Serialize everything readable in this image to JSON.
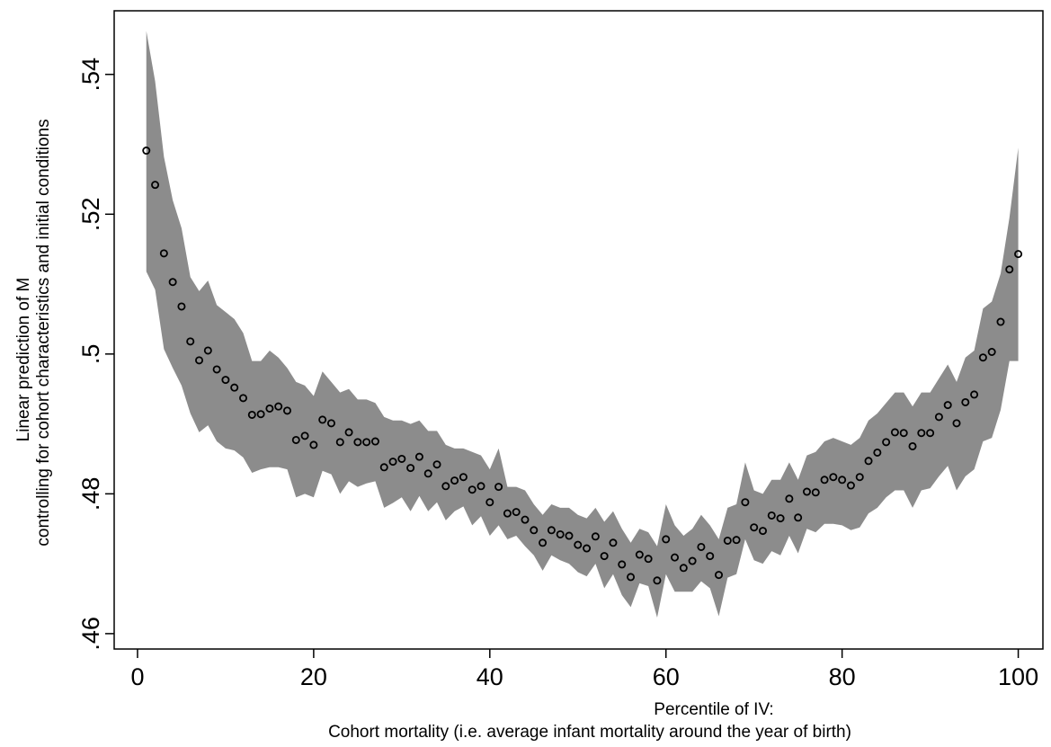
{
  "chart_data": {
    "type": "scatter",
    "ylabel": [
      "Linear prediction of M",
      "controlling for cohort characteristics and initial conditions"
    ],
    "xlabel": [
      "Percentile of IV:",
      "Cohort mortality (i.e. average infant mortality around the year of birth)"
    ],
    "xlim": [
      -2.65,
      102.8
    ],
    "ylim": [
      0.4578,
      0.5491
    ],
    "xticks": [
      0,
      20,
      40,
      60,
      80,
      100
    ],
    "yticks": [
      {
        "value": 0.46,
        "label": ".46"
      },
      {
        "value": 0.48,
        "label": ".48"
      },
      {
        "value": 0.5,
        "label": ".5"
      },
      {
        "value": 0.52,
        "label": ".52"
      },
      {
        "value": 0.54,
        "label": ".54"
      }
    ],
    "band_color": "#8c8c8c",
    "marker_color": "#000000",
    "x": [
      1,
      2,
      3,
      4,
      5,
      6,
      7,
      8,
      9,
      10,
      11,
      12,
      13,
      14,
      15,
      16,
      17,
      18,
      19,
      20,
      21,
      22,
      23,
      24,
      25,
      26,
      27,
      28,
      29,
      30,
      31,
      32,
      33,
      34,
      35,
      36,
      37,
      38,
      39,
      40,
      41,
      42,
      43,
      44,
      45,
      46,
      47,
      48,
      49,
      50,
      51,
      52,
      53,
      54,
      55,
      56,
      57,
      58,
      59,
      60,
      61,
      62,
      63,
      64,
      65,
      66,
      67,
      68,
      69,
      70,
      71,
      72,
      73,
      74,
      75,
      76,
      77,
      78,
      79,
      80,
      81,
      82,
      83,
      84,
      85,
      86,
      87,
      88,
      89,
      90,
      91,
      92,
      93,
      94,
      95,
      96,
      97,
      98,
      99,
      100
    ],
    "values": [
      0.5291,
      0.5242,
      0.5144,
      0.5103,
      0.5068,
      0.5018,
      0.4991,
      0.5005,
      0.4978,
      0.4963,
      0.4952,
      0.4937,
      0.4913,
      0.4914,
      0.4922,
      0.4925,
      0.4919,
      0.4877,
      0.4883,
      0.487,
      0.4906,
      0.4901,
      0.4874,
      0.4888,
      0.4874,
      0.4874,
      0.4875,
      0.4838,
      0.4846,
      0.485,
      0.4837,
      0.4853,
      0.4829,
      0.4842,
      0.4811,
      0.4819,
      0.4824,
      0.4806,
      0.4811,
      0.4788,
      0.481,
      0.4772,
      0.4774,
      0.4763,
      0.4748,
      0.473,
      0.4748,
      0.4742,
      0.474,
      0.4727,
      0.4722,
      0.4739,
      0.4711,
      0.473,
      0.4699,
      0.4681,
      0.4713,
      0.4707,
      0.4676,
      0.4735,
      0.4709,
      0.4694,
      0.4704,
      0.4724,
      0.4711,
      0.4684,
      0.4733,
      0.4734,
      0.4788,
      0.4752,
      0.4747,
      0.4769,
      0.4765,
      0.4793,
      0.4766,
      0.4803,
      0.4802,
      0.482,
      0.4824,
      0.482,
      0.4812,
      0.4824,
      0.4847,
      0.4859,
      0.4874,
      0.4888,
      0.4887,
      0.4868,
      0.4887,
      0.4887,
      0.491,
      0.4927,
      0.4901,
      0.4931,
      0.4942,
      0.4995,
      0.5003,
      0.5046,
      0.5121,
      0.5143
    ],
    "upper": [
      0.5462,
      0.539,
      0.5282,
      0.522,
      0.518,
      0.511,
      0.509,
      0.5105,
      0.507,
      0.506,
      0.505,
      0.503,
      0.499,
      0.499,
      0.5005,
      0.4995,
      0.498,
      0.496,
      0.4955,
      0.494,
      0.4975,
      0.496,
      0.4945,
      0.495,
      0.4935,
      0.4935,
      0.493,
      0.491,
      0.4905,
      0.4905,
      0.49,
      0.4905,
      0.489,
      0.489,
      0.487,
      0.4865,
      0.4865,
      0.486,
      0.4855,
      0.4835,
      0.4865,
      0.481,
      0.481,
      0.4805,
      0.4785,
      0.477,
      0.4785,
      0.478,
      0.478,
      0.477,
      0.4765,
      0.478,
      0.476,
      0.4775,
      0.475,
      0.473,
      0.475,
      0.4745,
      0.4725,
      0.4785,
      0.4755,
      0.474,
      0.475,
      0.477,
      0.4755,
      0.4735,
      0.478,
      0.4785,
      0.4845,
      0.4805,
      0.48,
      0.482,
      0.482,
      0.4845,
      0.482,
      0.4855,
      0.486,
      0.4875,
      0.488,
      0.4875,
      0.487,
      0.488,
      0.4905,
      0.4915,
      0.493,
      0.4945,
      0.4945,
      0.4925,
      0.4945,
      0.4945,
      0.4965,
      0.4985,
      0.496,
      0.4995,
      0.5005,
      0.5065,
      0.5075,
      0.5115,
      0.5195,
      0.5295
    ],
    "lower": [
      0.5118,
      0.5092,
      0.5007,
      0.498,
      0.4955,
      0.4915,
      0.4888,
      0.4898,
      0.4875,
      0.4865,
      0.4862,
      0.4852,
      0.483,
      0.4835,
      0.4838,
      0.4838,
      0.4835,
      0.4795,
      0.48,
      0.4795,
      0.4833,
      0.4828,
      0.48,
      0.4818,
      0.481,
      0.4815,
      0.4818,
      0.478,
      0.4787,
      0.4795,
      0.4775,
      0.4797,
      0.4775,
      0.4788,
      0.4762,
      0.4775,
      0.4782,
      0.4755,
      0.4768,
      0.474,
      0.4755,
      0.4735,
      0.474,
      0.4725,
      0.4712,
      0.469,
      0.4712,
      0.4705,
      0.47,
      0.4688,
      0.4682,
      0.47,
      0.4665,
      0.4685,
      0.4655,
      0.4638,
      0.4672,
      0.4668,
      0.4623,
      0.4685,
      0.466,
      0.466,
      0.466,
      0.4675,
      0.4665,
      0.4625,
      0.468,
      0.4685,
      0.4735,
      0.4705,
      0.47,
      0.4718,
      0.4712,
      0.474,
      0.4715,
      0.475,
      0.4745,
      0.4757,
      0.4757,
      0.4755,
      0.4748,
      0.4752,
      0.4772,
      0.478,
      0.4795,
      0.4805,
      0.4805,
      0.478,
      0.4805,
      0.4808,
      0.4825,
      0.484,
      0.4805,
      0.4825,
      0.4835,
      0.4875,
      0.488,
      0.492,
      0.499,
      0.499
    ]
  }
}
